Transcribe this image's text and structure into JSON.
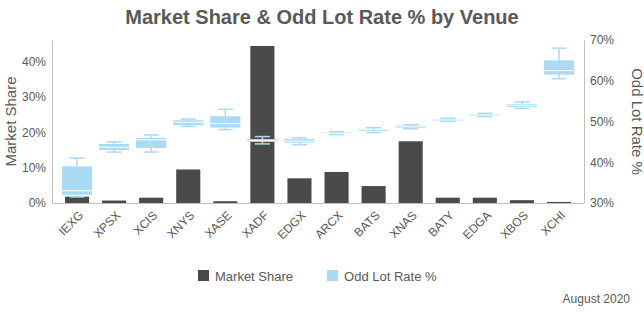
{
  "chart_data": {
    "type": "bar",
    "title": "Market Share & Odd Lot Rate % by Venue",
    "y_label": "Market Share",
    "y2_label": "Odd Lot Rate %",
    "annotation": "August 2020",
    "categories": [
      "IEXG",
      "XPSX",
      "XCIS",
      "XNYS",
      "XASE",
      "XADF",
      "EDGX",
      "ARCX",
      "BATS",
      "XNAS",
      "BATY",
      "EDGA",
      "XBOS",
      "XCHI"
    ],
    "series": [
      {
        "name": "Market Share",
        "type": "bar",
        "color": "#4a4a4a",
        "axis": "y",
        "values": [
          1.8,
          0.7,
          1.5,
          9.5,
          0.5,
          44.5,
          7.0,
          8.8,
          4.8,
          17.5,
          1.5,
          1.5,
          0.8,
          0.3
        ]
      },
      {
        "name": "Odd Lot Rate %",
        "type": "box",
        "color": "#a9dbf5",
        "axis": "y2",
        "values": [
          33,
          43.7,
          45.5,
          49.8,
          49.5,
          45.3,
          45.2,
          47.1,
          48,
          48.7,
          50.4,
          51.6,
          54,
          62.5
        ],
        "q1": [
          32,
          43,
          43.5,
          49.1,
          48.5,
          45,
          44.8,
          47,
          47.7,
          48.4,
          50.2,
          51.4,
          53.6,
          61.5
        ],
        "q3": [
          39,
          44.5,
          46,
          50.3,
          51.3,
          45.7,
          45.7,
          47.3,
          48.2,
          49,
          50.6,
          51.8,
          54.3,
          65
        ],
        "min": [
          31.5,
          42.5,
          42.5,
          48.8,
          48,
          44.5,
          44.3,
          46.8,
          47.3,
          48.2,
          50,
          51.2,
          53.2,
          60.5
        ],
        "max": [
          41,
          45,
          46.7,
          50.6,
          53,
          46.3,
          46,
          47.5,
          48.5,
          49.2,
          50.8,
          52,
          54.8,
          68
        ]
      }
    ],
    "ylim": [
      0,
      46.2
    ],
    "yticks": [
      {
        "value": 0,
        "label": "0%"
      },
      {
        "value": 10,
        "label": "10%"
      },
      {
        "value": 20,
        "label": "20%"
      },
      {
        "value": 30,
        "label": "30%"
      },
      {
        "value": 40,
        "label": "40%"
      }
    ],
    "y2lim": [
      30,
      70
    ],
    "y2ticks": [
      {
        "value": 30,
        "label": "30%"
      },
      {
        "value": 40,
        "label": "40%"
      },
      {
        "value": 50,
        "label": "50%"
      },
      {
        "value": 60,
        "label": "60%"
      },
      {
        "value": 70,
        "label": "70%"
      }
    ],
    "grid": false,
    "legend": "bottom"
  }
}
